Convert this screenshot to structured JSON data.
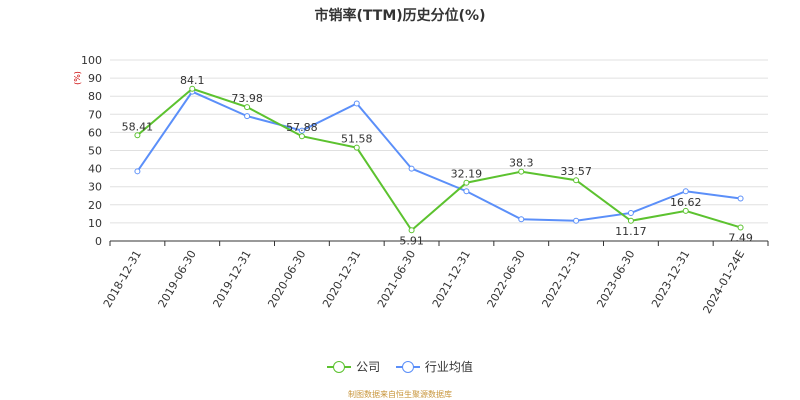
{
  "chart_data": {
    "type": "line",
    "title": "市销率(TTM)历史分位(%)",
    "yunit": "(%)",
    "ylim": [
      0,
      100
    ],
    "yticks": [
      0,
      10,
      20,
      30,
      40,
      50,
      60,
      70,
      80,
      90,
      100
    ],
    "categories": [
      "2018-12-31",
      "2019-06-30",
      "2019-12-31",
      "2020-06-30",
      "2020-12-31",
      "2021-06-30",
      "2021-12-31",
      "2022-06-30",
      "2022-12-31",
      "2023-06-30",
      "2023-12-31",
      "2024-01-24E"
    ],
    "grid": true,
    "legend_position": "bottom",
    "series": [
      {
        "name": "公司",
        "color": "#5cc22f",
        "show_labels": true,
        "values": [
          58.41,
          84.1,
          73.98,
          57.88,
          51.58,
          5.91,
          32.19,
          38.3,
          33.57,
          11.17,
          16.62,
          7.49
        ]
      },
      {
        "name": "行业均值",
        "color": "#5b8ff9",
        "show_labels": false,
        "values": [
          38.5,
          82.5,
          69.0,
          61.0,
          76.0,
          40.0,
          27.5,
          12.0,
          11.2,
          15.5,
          27.5,
          23.5
        ]
      }
    ]
  },
  "source_note": "制图数据来自恒生聚源数据库"
}
